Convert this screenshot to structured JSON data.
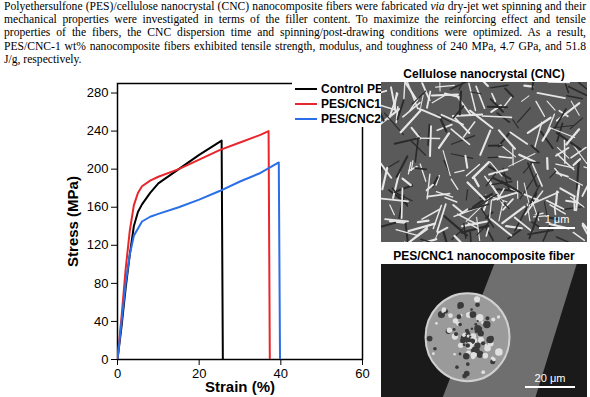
{
  "abstract": {
    "runs": [
      {
        "text": "Polyethersulfone (PES)/cellulose nanocrystal (CNC) nanocomposite fibers were fabricated "
      },
      {
        "text": "via",
        "italic": true
      },
      {
        "text": " dry-jet wet spinning and their mechanical properties were investigated in terms of the filler content. To maximize the reinforcing effect and tensile properties of the fibers, the CNC dispersion time and spinning/post-drawing conditions were optimized. As a result, PES/CNC-1 wt% nanocomposite fibers exhibited tensile strength, modulus, and toughness of 240 MPa, 4.7 GPa, and 51.8 J/g, respectively."
      }
    ]
  },
  "chart_data": {
    "type": "line",
    "x_label": "Strain (%)",
    "y_label": "Stress (MPa)",
    "xlim": [
      0,
      60
    ],
    "xticks": [
      0,
      20,
      40,
      60
    ],
    "ylim": [
      0,
      290
    ],
    "yticks": [
      0,
      40,
      80,
      120,
      160,
      200,
      240,
      280
    ],
    "legend": "top-right",
    "grid": false,
    "series": [
      {
        "name": "Control PES",
        "color": "#000000",
        "x": [
          0,
          1,
          2,
          3,
          4,
          5,
          6,
          8,
          10,
          15,
          20,
          25.5,
          25.8
        ],
        "values": [
          0,
          35,
          75,
          110,
          140,
          155,
          163,
          175,
          185,
          200,
          215,
          230,
          0
        ]
      },
      {
        "name": "PES/CNC1",
        "color": "#e8262b",
        "x": [
          0,
          1,
          2,
          3,
          4,
          5,
          6,
          8,
          10,
          15,
          20,
          25,
          30,
          35,
          37,
          37.3
        ],
        "values": [
          0,
          45,
          95,
          135,
          162,
          175,
          182,
          188,
          192,
          200,
          210,
          220,
          228,
          236,
          240,
          0
        ]
      },
      {
        "name": "PES/CNC2",
        "color": "#2a6ee8",
        "x": [
          0,
          1,
          2,
          3,
          4,
          6,
          8,
          10,
          15,
          20,
          25,
          30,
          35,
          39.5,
          39.8
        ],
        "values": [
          0,
          40,
          80,
          110,
          130,
          145,
          150,
          153,
          160,
          168,
          177,
          187,
          196,
          207,
          0
        ]
      }
    ]
  },
  "images": [
    {
      "title": "Cellulose nanocrystal (CNC)",
      "scale_bar": "1 μm"
    },
    {
      "title": "PES/CNC1 nanocomposite fiber",
      "scale_bar": "20 μm"
    }
  ]
}
